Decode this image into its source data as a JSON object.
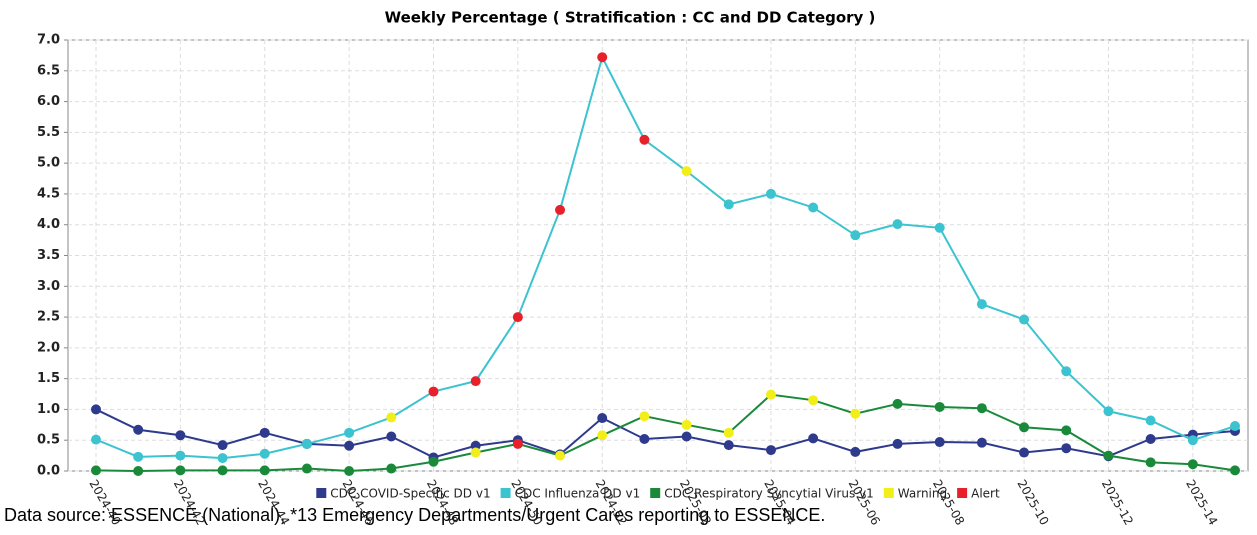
{
  "chart_data": {
    "type": "line",
    "title": "Weekly Percentage ( Stratification : CC and DD Category )",
    "categories": [
      "2024-40",
      null,
      "2024-42",
      null,
      "2024-44",
      null,
      "2024-46",
      null,
      "2024-48",
      null,
      "2024-50",
      null,
      "2024-52",
      null,
      "2025-02",
      null,
      "2025-04",
      null,
      "2025-06",
      null,
      "2025-08",
      null,
      "2025-10",
      null,
      "2025-12",
      null,
      "2025-14",
      null
    ],
    "series": [
      {
        "name": "CDC COVID-Specific DD v1",
        "color": "#2e3a8c",
        "values": [
          1.0,
          0.67,
          0.58,
          0.42,
          0.62,
          0.44,
          0.41,
          0.56,
          0.22,
          0.41,
          0.5,
          0.27,
          0.86,
          0.52,
          0.56,
          0.42,
          0.34,
          0.53,
          0.31,
          0.44,
          0.47,
          0.46,
          0.3,
          0.37,
          0.24,
          0.52,
          0.59,
          0.65
        ],
        "marker_colors": [
          null,
          null,
          null,
          null,
          null,
          null,
          null,
          null,
          null,
          null,
          null,
          null,
          null,
          null,
          null,
          null,
          null,
          null,
          null,
          null,
          null,
          null,
          null,
          null,
          null,
          null,
          null,
          null
        ]
      },
      {
        "name": "CDC Influenza DD v1",
        "color": "#3cc3d0",
        "values": [
          0.51,
          0.23,
          0.25,
          0.21,
          0.28,
          0.44,
          0.62,
          0.87,
          1.29,
          1.46,
          2.5,
          4.24,
          6.72,
          5.38,
          4.87,
          4.33,
          4.5,
          4.28,
          3.83,
          4.01,
          3.95,
          2.71,
          2.46,
          1.62,
          0.97,
          0.82,
          0.5,
          0.73
        ],
        "marker_colors": [
          null,
          null,
          null,
          null,
          null,
          null,
          null,
          "#f2ee1a",
          "#e8202a",
          "#e8202a",
          "#e8202a",
          "#e8202a",
          "#e8202a",
          "#e8202a",
          "#f2ee1a",
          null,
          null,
          null,
          null,
          null,
          null,
          null,
          null,
          null,
          null,
          null,
          null,
          null
        ]
      },
      {
        "name": "CDC Respiratory Syncytial Virus v1",
        "color": "#1a8a3a",
        "values": [
          0.01,
          0.0,
          0.01,
          0.01,
          0.01,
          0.04,
          0.0,
          0.04,
          0.15,
          0.3,
          0.44,
          0.25,
          0.58,
          0.89,
          0.75,
          0.62,
          1.24,
          1.15,
          0.93,
          1.09,
          1.04,
          1.02,
          0.71,
          0.66,
          0.25,
          0.14,
          0.11,
          0.01
        ],
        "marker_colors": [
          null,
          null,
          null,
          null,
          null,
          null,
          null,
          null,
          null,
          "#f2ee1a",
          "#e8202a",
          "#f2ee1a",
          "#f2ee1a",
          "#f2ee1a",
          "#f2ee1a",
          "#f2ee1a",
          "#f2ee1a",
          "#f2ee1a",
          "#f2ee1a",
          null,
          null,
          null,
          null,
          null,
          null,
          null,
          null,
          null
        ]
      }
    ],
    "status_legend": [
      {
        "name": "Warning",
        "color": "#f2ee1a"
      },
      {
        "name": "Alert",
        "color": "#e8202a"
      }
    ],
    "ylim": [
      0,
      7
    ],
    "yticks": [
      {
        "value": 0,
        "label": "0.0"
      },
      0.5,
      {
        "value": 1,
        "label": "1.0"
      },
      1.5,
      {
        "value": 2,
        "label": "2.0"
      },
      2.5,
      {
        "value": 3,
        "label": "3.0"
      },
      3.5,
      {
        "value": 4,
        "label": "4.0"
      },
      4.5,
      {
        "value": 5,
        "label": "5.0"
      },
      5.5,
      {
        "value": 6,
        "label": "6.0"
      },
      6.5,
      {
        "value": 7,
        "label": "7.0"
      }
    ],
    "grid": true,
    "source": "Data source: ESSENCE (National), *13 Emergency Departments/Urgent Cares reporting to ESSENCE."
  }
}
